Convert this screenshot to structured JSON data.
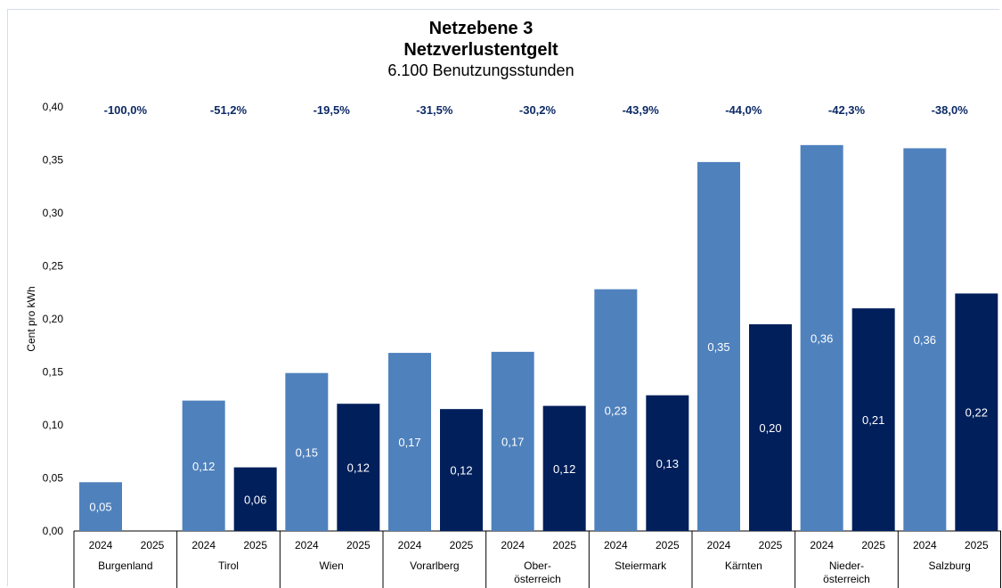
{
  "chart_data": {
    "type": "bar",
    "title": "Netzebene 3",
    "subtitle": "Netzverlustentgelt",
    "subtitle2": "6.100 Benutzungsstunden",
    "ylabel": "Cent pro kWh",
    "xlabel": "",
    "ylim": [
      0,
      0.4
    ],
    "yticks": [
      "0,00",
      "0,05",
      "0,10",
      "0,15",
      "0,20",
      "0,25",
      "0,30",
      "0,35",
      "0,40"
    ],
    "grid": false,
    "categories": [
      {
        "name": "Burgenland",
        "lines": [
          "Burgenland"
        ]
      },
      {
        "name": "Tirol",
        "lines": [
          "Tirol"
        ]
      },
      {
        "name": "Wien",
        "lines": [
          "Wien"
        ]
      },
      {
        "name": "Vorarlberg",
        "lines": [
          "Vorarlberg"
        ]
      },
      {
        "name": "Ober-österreich",
        "lines": [
          "Ober-",
          "österreich"
        ]
      },
      {
        "name": "Steiermark",
        "lines": [
          "Steiermark"
        ]
      },
      {
        "name": "Kärnten",
        "lines": [
          "Kärnten"
        ]
      },
      {
        "name": "Nieder-österreich",
        "lines": [
          "Nieder-",
          "österreich"
        ]
      },
      {
        "name": "Salzburg",
        "lines": [
          "Salzburg"
        ]
      }
    ],
    "series": [
      {
        "name": "2024",
        "color": "#4f81bd",
        "values": [
          0.046,
          0.123,
          0.149,
          0.168,
          0.169,
          0.228,
          0.348,
          0.364,
          0.361
        ],
        "labels": [
          "0,05",
          "0,12",
          "0,15",
          "0,17",
          "0,17",
          "0,23",
          "0,35",
          "0,36",
          "0,36"
        ]
      },
      {
        "name": "2025",
        "color": "#001f5b",
        "values": [
          0.0,
          0.06,
          0.12,
          0.115,
          0.118,
          0.128,
          0.195,
          0.21,
          0.224
        ],
        "labels": [
          "",
          "0,06",
          "0,12",
          "0,12",
          "0,12",
          "0,13",
          "0,20",
          "0,21",
          "0,22"
        ]
      }
    ],
    "changes": [
      "-100,0%",
      "-51,2%",
      "-19,5%",
      "-31,5%",
      "-30,2%",
      "-43,9%",
      "-44,0%",
      "-42,3%",
      "-38,0%"
    ]
  }
}
